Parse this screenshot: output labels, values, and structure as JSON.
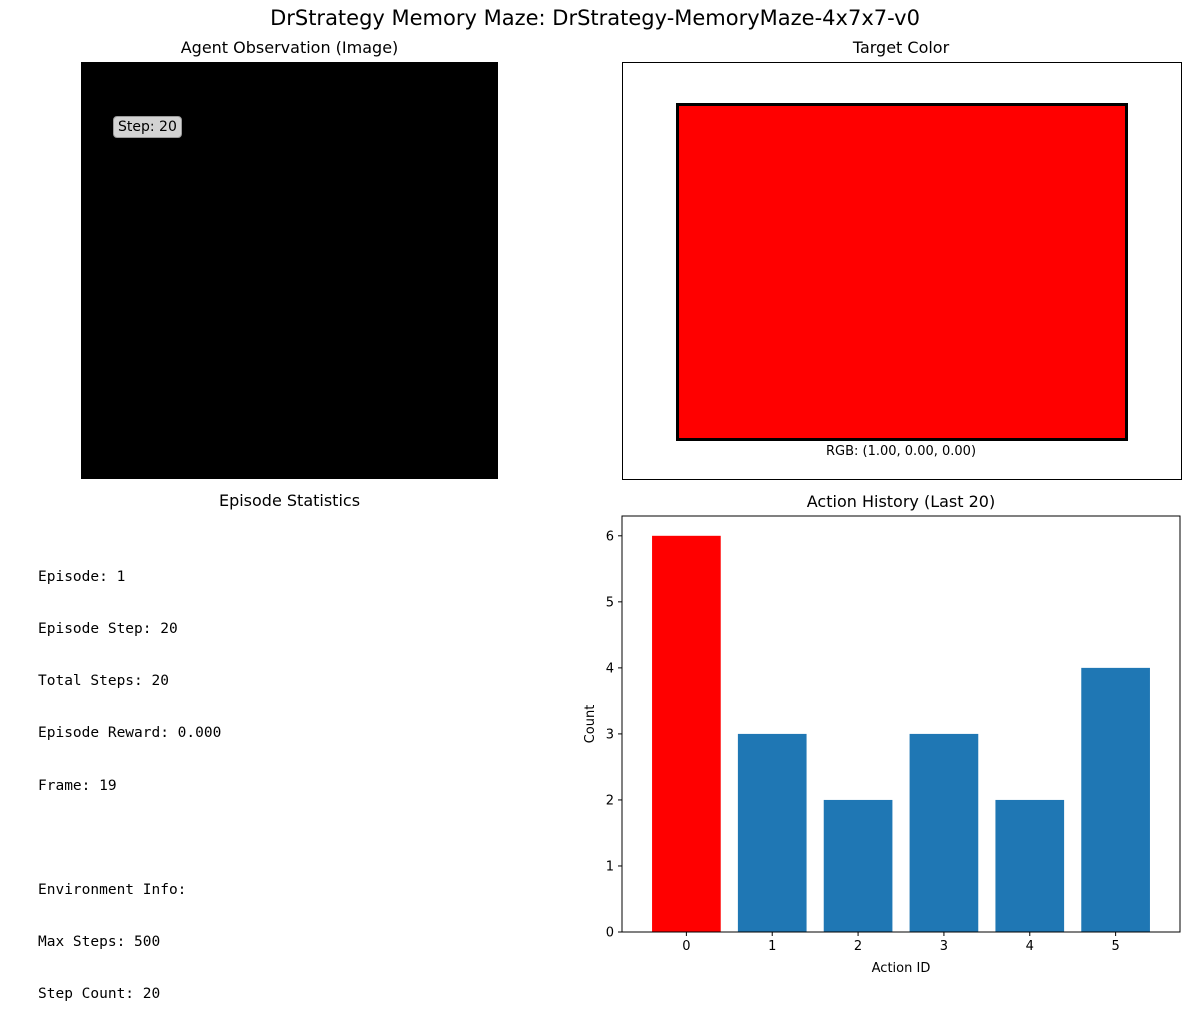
{
  "figure": {
    "title": "DrStrategy Memory Maze: DrStrategy-MemoryMaze-4x7x7-v0"
  },
  "observation": {
    "title": "Agent Observation (Image)",
    "step_label": "Step: 20",
    "background_color": "#000000"
  },
  "target": {
    "title": "Target Color",
    "rgb_label": "RGB: (1.00, 0.00, 0.00)",
    "color": "#ff0000"
  },
  "stats": {
    "title": "Episode Statistics",
    "lines": [
      "Episode: 1",
      "Episode Step: 20",
      "Total Steps: 20",
      "Episode Reward: 0.000",
      "Frame: 19",
      "",
      "Environment Info:",
      "Max Steps: 500",
      "Step Count: 20"
    ]
  },
  "chart_data": {
    "type": "bar",
    "title": "Action History (Last 20)",
    "xlabel": "Action ID",
    "ylabel": "Count",
    "categories": [
      "0",
      "1",
      "2",
      "3",
      "4",
      "5"
    ],
    "values": [
      6,
      3,
      2,
      3,
      2,
      4
    ],
    "colors": [
      "#ff0000",
      "#1f77b4",
      "#1f77b4",
      "#1f77b4",
      "#1f77b4",
      "#1f77b4"
    ],
    "ylim": [
      0,
      6.3
    ],
    "yticks": [
      0,
      1,
      2,
      3,
      4,
      5,
      6
    ],
    "grid": false
  }
}
